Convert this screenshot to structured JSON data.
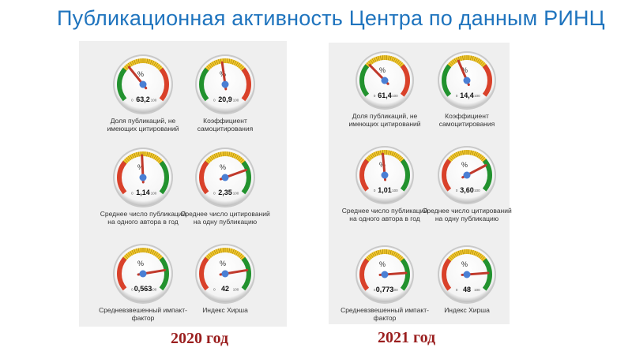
{
  "title": "Публикационная активность Центра по данным РИНЦ",
  "gauge_text": {
    "unit": "%",
    "min": "0",
    "max": "100"
  },
  "colors": {
    "red": "#d9412a",
    "yellow": "#f1c62c",
    "green": "#22922e",
    "needle": "#c0392b",
    "hub": "#4a7fd4",
    "title": "#1f74be",
    "year": "#9a1e1e"
  },
  "panels": [
    {
      "year_label": "2020 год",
      "gauges": [
        {
          "value_text": "63,2",
          "label": "Доля публикаций, не имеющих цитирований",
          "needle_pct": 0.35,
          "scheme": "green-yellow-red"
        },
        {
          "value_text": "20,9",
          "label": "Коэффициент самоцитирования",
          "needle_pct": 0.47,
          "scheme": "green-yellow-red"
        },
        {
          "value_text": "1,14",
          "label": "Среднее число публикаций на одного автора в год",
          "needle_pct": 0.49,
          "scheme": "red-yellow-green"
        },
        {
          "value_text": "2,35",
          "label": "Среднее число цитирований на одну публикацию",
          "needle_pct": 0.77,
          "scheme": "red-yellow-green"
        },
        {
          "value_text": "0,563",
          "label": "Средневзвешенный импакт-фактор",
          "needle_pct": 0.81,
          "scheme": "red-yellow-green"
        },
        {
          "value_text": "42",
          "label": "Индекс Хирша",
          "needle_pct": 0.81,
          "scheme": "red-yellow-green"
        }
      ]
    },
    {
      "year_label": "2021 год",
      "gauges": [
        {
          "value_text": "61,4",
          "label": "Доля публикаций, не имеющих цитирований",
          "needle_pct": 0.33,
          "scheme": "green-yellow-red"
        },
        {
          "value_text": "14,4",
          "label": "Коэффициент самоцитирования",
          "needle_pct": 0.41,
          "scheme": "green-yellow-red"
        },
        {
          "value_text": "1,01",
          "label": "Среднее число публикаций на одного автора в год",
          "needle_pct": 0.48,
          "scheme": "red-yellow-green"
        },
        {
          "value_text": "3,60",
          "label": "Среднее число цитирований на одну публикацию",
          "needle_pct": 0.74,
          "scheme": "red-yellow-green"
        },
        {
          "value_text": "0,773",
          "label": "Средневзвешенный импакт-фактор",
          "needle_pct": 0.83,
          "scheme": "red-yellow-green"
        },
        {
          "value_text": "48",
          "label": "Индекс Хирша",
          "needle_pct": 0.83,
          "scheme": "red-yellow-green"
        }
      ]
    }
  ]
}
